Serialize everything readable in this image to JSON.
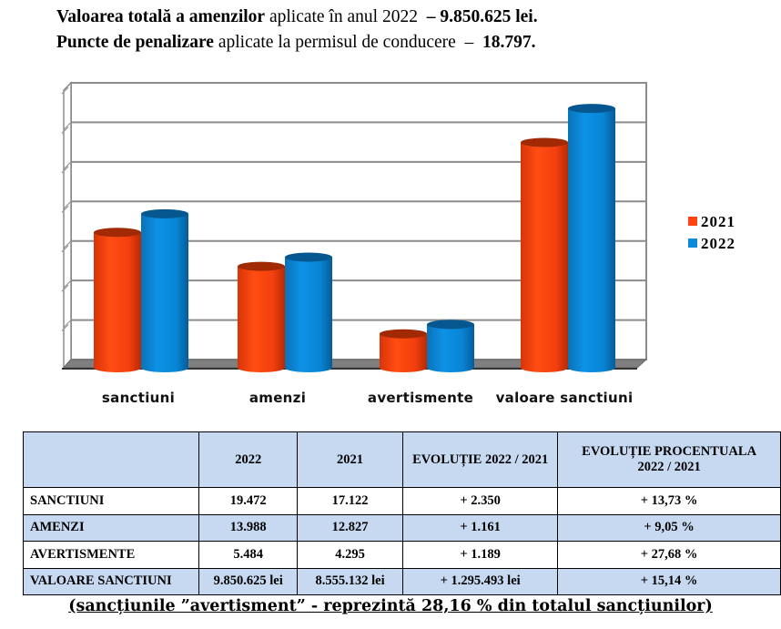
{
  "header": {
    "line1_bold": "Valoarea totală a amenzilor",
    "line1_normal": "aplicate în anul 2022",
    "line1_value": "– 9.850.625 lei.",
    "line2_bold": "Puncte de penalizare",
    "line2_normal": "aplicate la permisul de conducere",
    "line2_dash": "–",
    "line2_value": "18.797."
  },
  "chart_data": {
    "type": "bar",
    "style": "3d-cylinder",
    "title": "",
    "xlabel": "",
    "ylabel": "",
    "categories": [
      "sanctiuni",
      "amenzi",
      "avertismente",
      "valoare sanctiuni"
    ],
    "series": [
      {
        "name": "2021",
        "color": "#fd4412",
        "values": [
          17122,
          12827,
          4295,
          28500
        ]
      },
      {
        "name": "2022",
        "color": "#0b8ad8",
        "values": [
          19472,
          13988,
          5484,
          32800
        ]
      }
    ],
    "ylim": [
      0,
      35000
    ],
    "ytick_step": 5000,
    "ytick_labels_legible": false,
    "grid": true,
    "legend_position": "right"
  },
  "table": {
    "headers": [
      "",
      "2022",
      "2021",
      "EVOLUȚIE 2022 / 2021",
      "EVOLUȚIE PROCENTUALA 2022 / 2021"
    ],
    "rows": [
      {
        "label": "SANCTIUNI",
        "v2022": "19.472",
        "v2021": "17.122",
        "evol": "+ 2.350",
        "pct": "+ 13,73 %"
      },
      {
        "label": "AMENZI",
        "v2022": "13.988",
        "v2021": "12.827",
        "evol": "+ 1.161",
        "pct": "+ 9,05 %"
      },
      {
        "label": "AVERTISMENTE",
        "v2022": "5.484",
        "v2021": "4.295",
        "evol": "+ 1.189",
        "pct": "+ 27,68 %"
      },
      {
        "label": "VALOARE SANCTIUNI",
        "v2022": "9.850.625 lei",
        "v2021": "8.555.132 lei",
        "evol": "+ 1.295.493 lei",
        "pct": "+ 15,14 %"
      }
    ],
    "header_bg": "#c6d9f1"
  },
  "caption": "(sancțiunile ”avertisment” - reprezintă 28,16 % din totalul sancțiunilor)"
}
